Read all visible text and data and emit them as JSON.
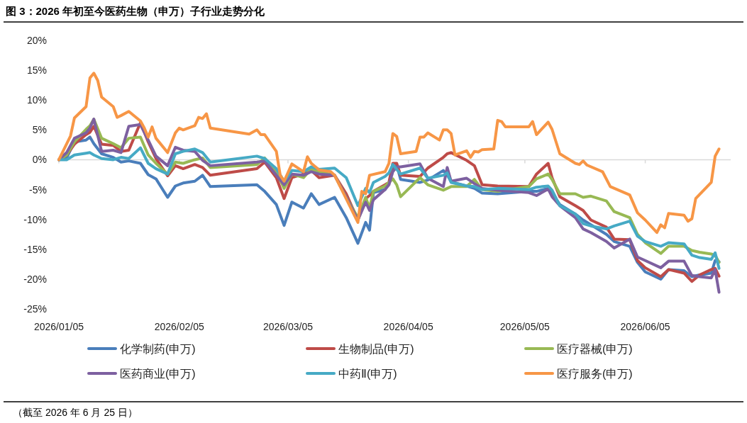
{
  "chart_data": {
    "type": "line",
    "title": "图 3：2026 年初至今医药生物（申万）子行业走势分化",
    "annotations": [
      "（截至 2026 年 6 月 25 日）"
    ],
    "x": [
      "2026-01-05",
      "2026-01-07",
      "2026-01-09",
      "2026-01-12",
      "2026-01-13",
      "2026-01-14",
      "2026-01-16",
      "2026-01-19",
      "2026-01-21",
      "2026-01-23",
      "2026-01-26",
      "2026-01-28",
      "2026-01-30",
      "2026-02-02",
      "2026-02-04",
      "2026-02-06",
      "2026-02-09",
      "2026-02-11",
      "2026-02-13",
      "2026-02-25",
      "2026-02-27",
      "2026-03-02",
      "2026-03-04",
      "2026-03-06",
      "2026-03-09",
      "2026-03-11",
      "2026-03-13",
      "2026-03-17",
      "2026-03-20",
      "2026-03-23",
      "2026-03-25",
      "2026-03-26",
      "2026-03-27",
      "2026-03-30",
      "2026-03-31",
      "2026-04-01",
      "2026-04-02",
      "2026-04-03",
      "2026-04-08",
      "2026-04-10",
      "2026-04-14",
      "2026-04-15",
      "2026-04-16",
      "2026-04-20",
      "2026-04-22",
      "2026-04-24",
      "2026-04-28",
      "2026-05-06",
      "2026-05-08",
      "2026-05-11",
      "2026-05-12",
      "2026-05-14",
      "2026-05-18",
      "2026-05-20",
      "2026-05-22",
      "2026-05-26",
      "2026-05-28",
      "2026-06-01",
      "2026-06-03",
      "2026-06-05",
      "2026-06-09",
      "2026-06-11",
      "2026-06-15",
      "2026-06-17",
      "2026-06-19",
      "2026-06-22",
      "2026-06-23",
      "2026-06-24"
    ],
    "series": [
      {
        "name": "化学制药(申万)",
        "color": "#4a7ebb",
        "values": [
          0,
          0.3,
          3.0,
          3.3,
          3.8,
          2.7,
          1.0,
          0.4,
          -0.4,
          -0.2,
          -0.6,
          -2.5,
          -3.2,
          -6.3,
          -4.4,
          -3.9,
          -3.6,
          -2.6,
          -4.5,
          -4.2,
          -5.3,
          -7.5,
          -11.0,
          -7.1,
          -8.1,
          -5.7,
          -7.5,
          -6.3,
          -9.7,
          -14.0,
          -10.5,
          -11.8,
          -5.5,
          -5.0,
          -3.8,
          -1.5,
          -0.9,
          -3.3,
          -3.8,
          -3.4,
          -1.8,
          -2.5,
          -3.7,
          -4.4,
          -4.8,
          -5.6,
          -5.7,
          -5.3,
          -5.3,
          -4.8,
          -5.6,
          -7.5,
          -9.1,
          -10.1,
          -10.9,
          -12.5,
          -13.7,
          -14.5,
          -17.2,
          -18.8,
          -20.0,
          -18.4,
          -18.6,
          -19.6,
          -19.3,
          -19.0,
          -16.9,
          -17.1
        ]
      },
      {
        "name": "生物制品(申万)",
        "color": "#be4b48",
        "values": [
          0,
          0.8,
          2.6,
          4.2,
          4.6,
          5.6,
          2.6,
          2.4,
          1.4,
          1.6,
          6.2,
          3.0,
          0.2,
          -2.7,
          -1.0,
          -1.5,
          -0.8,
          -1.3,
          -2.6,
          -1.5,
          -0.4,
          -3.0,
          -6.5,
          -3.0,
          -2.4,
          -1.8,
          -3.0,
          -2.6,
          -5.7,
          -10.1,
          -6.5,
          -6.0,
          -5.3,
          -4.2,
          -3.8,
          -0.6,
          -0.6,
          -2.6,
          -2.8,
          -1.4,
          0.4,
          1.0,
          1.2,
          -0.1,
          -1.0,
          -4.2,
          -4.4,
          -4.5,
          -2.4,
          -0.6,
          -3.0,
          -6.2,
          -7.7,
          -8.5,
          -10.1,
          -11.3,
          -13.3,
          -13.4,
          -16.9,
          -18.1,
          -19.6,
          -18.4,
          -19.0,
          -20.4,
          -19.3,
          -18.4,
          -18.2,
          -19.5
        ]
      },
      {
        "name": "医疗器械(申万)",
        "color": "#98b954",
        "values": [
          0,
          0.8,
          3.0,
          5.1,
          5.7,
          6.8,
          3.6,
          2.7,
          2.0,
          3.6,
          3.8,
          0.8,
          -0.6,
          -2.4,
          -0.4,
          -0.6,
          0,
          0.3,
          -1.3,
          -0.8,
          0.3,
          -2.0,
          -4.8,
          -2.4,
          -3.0,
          -1.5,
          -2.0,
          -2.6,
          -6.3,
          -9.7,
          -6.3,
          -8.1,
          -5.3,
          -4.4,
          -3.8,
          -3.2,
          -4.2,
          -6.2,
          -3.0,
          -4.2,
          -5.1,
          -4.8,
          -4.5,
          -4.5,
          -3.3,
          -5.0,
          -5.3,
          -4.5,
          -3.2,
          -2.4,
          -3.3,
          -5.7,
          -5.7,
          -6.3,
          -6.1,
          -6.9,
          -8.7,
          -9.7,
          -12.5,
          -13.9,
          -15.7,
          -14.5,
          -14.5,
          -15.2,
          -15.5,
          -15.8,
          -16.0,
          -17.2
        ]
      },
      {
        "name": "医药商业(申万)",
        "color": "#7d60a0",
        "values": [
          0,
          1.2,
          3.6,
          4.5,
          5.3,
          6.8,
          1.4,
          1.6,
          1.2,
          5.6,
          5.9,
          3.3,
          0.6,
          -1.0,
          2.1,
          1.6,
          1.4,
          -0.1,
          -1.0,
          -0.4,
          -0.2,
          -2.6,
          -4.2,
          -2.4,
          -2.6,
          -2.0,
          -2.4,
          -2.6,
          -6.3,
          -10.1,
          -7.1,
          -8.5,
          -6.7,
          -5.0,
          -4.2,
          -2.0,
          -1.2,
          -1.2,
          -0.7,
          -3.1,
          -4.5,
          -1.3,
          -3.6,
          -3.1,
          -4.0,
          -4.8,
          -5.1,
          -5.5,
          -6.0,
          -4.9,
          -6.2,
          -7.7,
          -9.7,
          -11.6,
          -12.2,
          -13.7,
          -14.8,
          -13.3,
          -16.3,
          -16.9,
          -18.1,
          -17.0,
          -17.0,
          -19.4,
          -19.6,
          -19.8,
          -18.4,
          -22.2
        ]
      },
      {
        "name": "中药Ⅱ(申万)",
        "color": "#46aac5",
        "values": [
          0,
          0,
          0.8,
          1.1,
          1.2,
          0.8,
          0.2,
          0,
          0.4,
          0.2,
          2.0,
          -0.6,
          -1.5,
          -2.4,
          1.0,
          1.4,
          1.8,
          1.2,
          -0.4,
          0.6,
          0.2,
          -1.5,
          -3.6,
          -1.8,
          -2.0,
          -1.2,
          -1.6,
          -1.4,
          -3.0,
          -7.7,
          -4.8,
          -5.5,
          -3.8,
          -2.8,
          -2.2,
          -0.8,
          -1.6,
          -2.4,
          -1.4,
          -3.1,
          -2.6,
          -2.2,
          -3.8,
          -4.4,
          -4.5,
          -5.0,
          -4.8,
          -5.0,
          -4.6,
          -4.4,
          -5.1,
          -7.7,
          -9.1,
          -10.7,
          -11.1,
          -11.6,
          -11.1,
          -10.3,
          -12.8,
          -13.7,
          -14.5,
          -13.9,
          -14.1,
          -16.0,
          -16.4,
          -16.7,
          -15.6,
          -18.2
        ]
      },
      {
        "name": "医疗服务(申万)",
        "color": "#f79646",
        "x": [
          "2026-01-05",
          "2026-01-08",
          "2026-01-09",
          "2026-01-12",
          "2026-01-13",
          "2026-01-14",
          "2026-01-15",
          "2026-01-16",
          "2026-01-19",
          "2026-01-20",
          "2026-01-21",
          "2026-01-23",
          "2026-01-26",
          "2026-01-27",
          "2026-01-28",
          "2026-01-29",
          "2026-01-30",
          "2026-02-02",
          "2026-02-04",
          "2026-02-05",
          "2026-02-06",
          "2026-02-09",
          "2026-02-10",
          "2026-02-11",
          "2026-02-12",
          "2026-02-13",
          "2026-02-23",
          "2026-02-25",
          "2026-02-26",
          "2026-02-27",
          "2026-03-02",
          "2026-03-03",
          "2026-03-04",
          "2026-03-06",
          "2026-03-09",
          "2026-03-10",
          "2026-03-11",
          "2026-03-13",
          "2026-03-16",
          "2026-03-17",
          "2026-03-23",
          "2026-03-24",
          "2026-03-25",
          "2026-03-26",
          "2026-03-30",
          "2026-03-31",
          "2026-04-01",
          "2026-04-02",
          "2026-04-03",
          "2026-04-07",
          "2026-04-08",
          "2026-04-09",
          "2026-04-10",
          "2026-04-13",
          "2026-04-14",
          "2026-04-15",
          "2026-04-16",
          "2026-04-17",
          "2026-04-20",
          "2026-04-21",
          "2026-04-22",
          "2026-04-23",
          "2026-04-24",
          "2026-04-27",
          "2026-04-28",
          "2026-04-29",
          "2026-04-30",
          "2026-05-06",
          "2026-05-07",
          "2026-05-08",
          "2026-05-11",
          "2026-05-12",
          "2026-05-14",
          "2026-05-18",
          "2026-05-19",
          "2026-05-20",
          "2026-05-21",
          "2026-05-25",
          "2026-05-27",
          "2026-06-01",
          "2026-06-03",
          "2026-06-05",
          "2026-06-08",
          "2026-06-09",
          "2026-06-10",
          "2026-06-11",
          "2026-06-15",
          "2026-06-16",
          "2026-06-17",
          "2026-06-18",
          "2026-06-22",
          "2026-06-23",
          "2026-06-24"
        ],
        "values": [
          0,
          4.0,
          7.0,
          8.9,
          13.7,
          14.5,
          13.3,
          10.5,
          8.9,
          7.1,
          7.4,
          8.1,
          6.5,
          5.3,
          3.8,
          5.5,
          3.6,
          1.2,
          4.5,
          5.3,
          5.0,
          5.7,
          7.1,
          6.9,
          7.7,
          5.3,
          4.3,
          5.0,
          4.2,
          4.2,
          1.4,
          -2.6,
          -3.6,
          -0.7,
          -2.0,
          0.5,
          -0.6,
          -1.7,
          -2.0,
          -2.6,
          -10.5,
          -5.3,
          -5.7,
          -2.6,
          -2.0,
          -0.6,
          4.4,
          3.9,
          1.0,
          1.4,
          3.8,
          3.8,
          4.5,
          3.3,
          5.0,
          5.0,
          4.4,
          0.8,
          1.5,
          0.4,
          1.4,
          1.3,
          1.7,
          1.8,
          6.6,
          6.4,
          5.5,
          5.5,
          6.4,
          4.2,
          6.3,
          5.1,
          1.0,
          -0.6,
          -0.8,
          -0.2,
          -0.9,
          -2.0,
          -4.5,
          -5.9,
          -8.9,
          -10.1,
          -12.2,
          -10.9,
          -11.4,
          -9.0,
          -9.3,
          -10.3,
          -9.9,
          -6.5,
          -3.8,
          0.6,
          1.8
        ]
      }
    ],
    "xlim": [
      "2026-01-05",
      "2026-06-27"
    ],
    "xticks": [
      {
        "value": "2026-01-05",
        "label": "2026/01/05"
      },
      {
        "value": "2026-02-05",
        "label": "2026/02/05"
      },
      {
        "value": "2026-03-05",
        "label": "2026/03/05"
      },
      {
        "value": "2026-04-05",
        "label": "2026/04/05"
      },
      {
        "value": "2026-05-05",
        "label": "2026/05/05"
      },
      {
        "value": "2026-06-05",
        "label": "2026/06/05"
      }
    ],
    "ylim": [
      -25,
      20
    ],
    "yticks": [
      {
        "value": -25,
        "label": "-25%"
      },
      {
        "value": -20,
        "label": "-20%"
      },
      {
        "value": -15,
        "label": "-15%"
      },
      {
        "value": -10,
        "label": "-10%"
      },
      {
        "value": -5,
        "label": "-5%"
      },
      {
        "value": 0,
        "label": "0%"
      },
      {
        "value": 5,
        "label": "5%"
      },
      {
        "value": 10,
        "label": "10%"
      },
      {
        "value": 15,
        "label": "15%"
      },
      {
        "value": 20,
        "label": "20%"
      }
    ],
    "legend": "bottom"
  }
}
